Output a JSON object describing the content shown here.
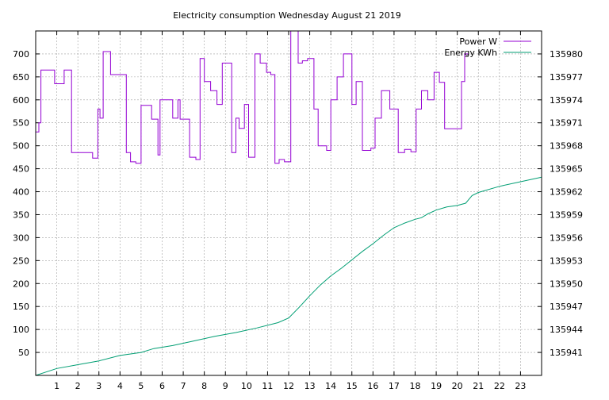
{
  "chart_data": {
    "type": "line",
    "title": "Electricity consumption Wednesday August 21 2019",
    "xlabel": "",
    "ylabel": "",
    "y2label": "",
    "xlim": [
      0,
      24
    ],
    "ylim": [
      0,
      750
    ],
    "y2lim": [
      135938,
      135983
    ],
    "x_ticks": [
      "1",
      "2",
      "3",
      "4",
      "5",
      "6",
      "7",
      "8",
      "9",
      "10",
      "11",
      "12",
      "13",
      "14",
      "15",
      "16",
      "17",
      "18",
      "19",
      "20",
      "21",
      "22",
      "23"
    ],
    "y_ticks": [
      "50",
      "100",
      "150",
      "200",
      "250",
      "300",
      "350",
      "400",
      "450",
      "500",
      "550",
      "600",
      "650",
      "700"
    ],
    "y2_ticks": [
      "135941",
      "135944",
      "135947",
      "135950",
      "135953",
      "135956",
      "135959",
      "135962",
      "135965",
      "135968",
      "135971",
      "135974",
      "135977",
      "135980"
    ],
    "grid": true,
    "legend_position": "top-right",
    "series": [
      {
        "name": "Power W",
        "color": "#9400d3",
        "axis": "left",
        "step": true,
        "points": [
          [
            0.0,
            530
          ],
          [
            0.15,
            550
          ],
          [
            0.25,
            665
          ],
          [
            0.9,
            635
          ],
          [
            1.35,
            665
          ],
          [
            1.7,
            485
          ],
          [
            2.7,
            473
          ],
          [
            2.95,
            580
          ],
          [
            3.05,
            560
          ],
          [
            3.2,
            705
          ],
          [
            3.55,
            655
          ],
          [
            4.3,
            485
          ],
          [
            4.5,
            465
          ],
          [
            4.75,
            462
          ],
          [
            5.0,
            588
          ],
          [
            5.5,
            558
          ],
          [
            5.8,
            480
          ],
          [
            5.9,
            600
          ],
          [
            6.5,
            560
          ],
          [
            6.75,
            600
          ],
          [
            6.85,
            558
          ],
          [
            7.3,
            475
          ],
          [
            7.6,
            470
          ],
          [
            7.8,
            690
          ],
          [
            8.0,
            640
          ],
          [
            8.3,
            620
          ],
          [
            8.6,
            590
          ],
          [
            8.85,
            680
          ],
          [
            9.3,
            485
          ],
          [
            9.5,
            560
          ],
          [
            9.65,
            538
          ],
          [
            9.9,
            590
          ],
          [
            10.1,
            475
          ],
          [
            10.4,
            700
          ],
          [
            10.65,
            680
          ],
          [
            10.95,
            660
          ],
          [
            11.15,
            655
          ],
          [
            11.35,
            462
          ],
          [
            11.55,
            470
          ],
          [
            11.8,
            465
          ],
          [
            12.1,
            750
          ],
          [
            12.45,
            680
          ],
          [
            12.65,
            685
          ],
          [
            12.9,
            690
          ],
          [
            13.2,
            580
          ],
          [
            13.4,
            500
          ],
          [
            13.8,
            490
          ],
          [
            14.0,
            600
          ],
          [
            14.3,
            650
          ],
          [
            14.6,
            700
          ],
          [
            15.0,
            590
          ],
          [
            15.2,
            640
          ],
          [
            15.5,
            490
          ],
          [
            15.9,
            495
          ],
          [
            16.1,
            560
          ],
          [
            16.4,
            620
          ],
          [
            16.8,
            580
          ],
          [
            17.2,
            485
          ],
          [
            17.5,
            492
          ],
          [
            17.8,
            487
          ],
          [
            18.05,
            580
          ],
          [
            18.3,
            620
          ],
          [
            18.6,
            600
          ],
          [
            18.9,
            660
          ],
          [
            19.15,
            638
          ],
          [
            19.4,
            537
          ],
          [
            20.2,
            640
          ],
          [
            20.35,
            700
          ],
          [
            20.55,
            700
          ]
        ]
      },
      {
        "name": "Energy KWh",
        "color": "#009e73",
        "axis": "right",
        "step": false,
        "points": [
          [
            0.0,
            135938.0
          ],
          [
            1.0,
            135938.9
          ],
          [
            2.0,
            135939.4
          ],
          [
            3.0,
            135939.9
          ],
          [
            4.0,
            135940.6
          ],
          [
            5.0,
            135941.0
          ],
          [
            5.6,
            135941.5
          ],
          [
            6.5,
            135941.9
          ],
          [
            7.5,
            135942.5
          ],
          [
            8.5,
            135943.1
          ],
          [
            9.5,
            135943.6
          ],
          [
            10.5,
            135944.2
          ],
          [
            11.5,
            135944.9
          ],
          [
            12.0,
            135945.5
          ],
          [
            12.5,
            135946.9
          ],
          [
            13.0,
            135948.4
          ],
          [
            13.5,
            135949.8
          ],
          [
            14.0,
            135951.0
          ],
          [
            14.5,
            135952.0
          ],
          [
            15.0,
            135953.1
          ],
          [
            15.5,
            135954.2
          ],
          [
            16.0,
            135955.2
          ],
          [
            16.5,
            135956.3
          ],
          [
            17.0,
            135957.3
          ],
          [
            17.5,
            135957.9
          ],
          [
            18.0,
            135958.4
          ],
          [
            18.3,
            135958.6
          ],
          [
            18.6,
            135959.1
          ],
          [
            19.0,
            135959.6
          ],
          [
            19.5,
            135960.0
          ],
          [
            20.0,
            135960.2
          ],
          [
            20.4,
            135960.5
          ],
          [
            20.55,
            135961.0
          ],
          [
            20.7,
            135961.5
          ],
          [
            21.0,
            135961.9
          ],
          [
            22.0,
            135962.7
          ],
          [
            23.0,
            135963.3
          ],
          [
            24.0,
            135963.9
          ]
        ]
      }
    ]
  }
}
